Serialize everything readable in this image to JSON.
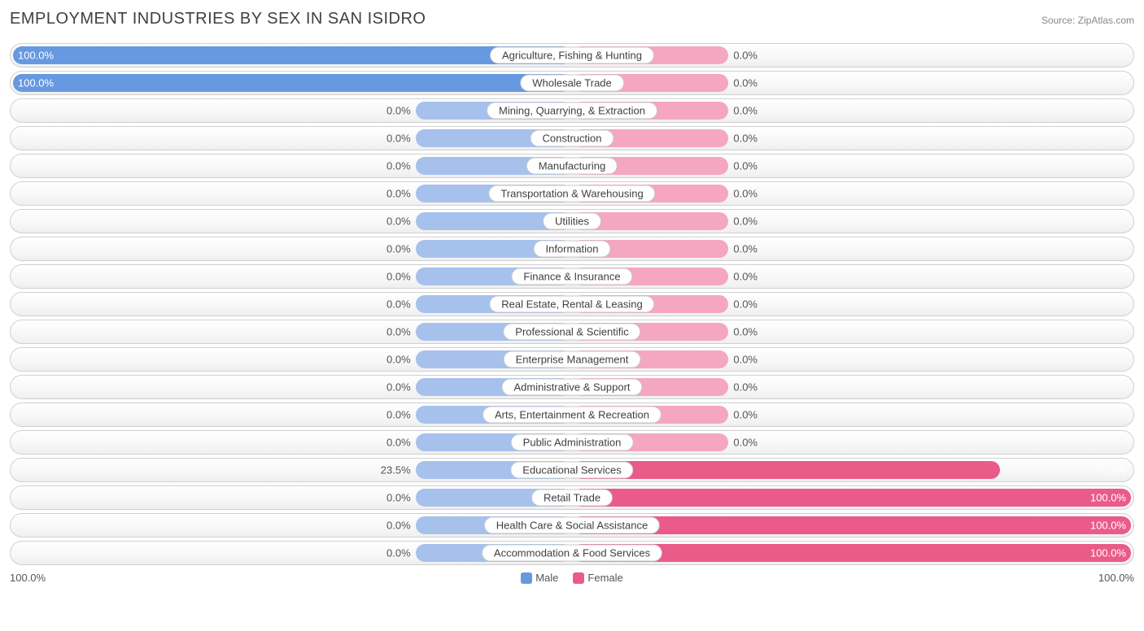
{
  "title": "EMPLOYMENT INDUSTRIES BY SEX IN SAN ISIDRO",
  "source": "Source: ZipAtlas.com",
  "axis_left": "100.0%",
  "axis_right": "100.0%",
  "legend": {
    "male": "Male",
    "female": "Female"
  },
  "colors": {
    "male_full": "#6699e0",
    "male_dim": "#a6c1ec",
    "female_full": "#ea5b89",
    "female_dim": "#f5a6c0",
    "row_border": "#d0d0d0",
    "text": "#404040"
  },
  "min_stub_pct": 28,
  "industries": [
    {
      "label": "Agriculture, Fishing & Hunting",
      "male": 100.0,
      "female": 0.0
    },
    {
      "label": "Wholesale Trade",
      "male": 100.0,
      "female": 0.0
    },
    {
      "label": "Mining, Quarrying, & Extraction",
      "male": 0.0,
      "female": 0.0
    },
    {
      "label": "Construction",
      "male": 0.0,
      "female": 0.0
    },
    {
      "label": "Manufacturing",
      "male": 0.0,
      "female": 0.0
    },
    {
      "label": "Transportation & Warehousing",
      "male": 0.0,
      "female": 0.0
    },
    {
      "label": "Utilities",
      "male": 0.0,
      "female": 0.0
    },
    {
      "label": "Information",
      "male": 0.0,
      "female": 0.0
    },
    {
      "label": "Finance & Insurance",
      "male": 0.0,
      "female": 0.0
    },
    {
      "label": "Real Estate, Rental & Leasing",
      "male": 0.0,
      "female": 0.0
    },
    {
      "label": "Professional & Scientific",
      "male": 0.0,
      "female": 0.0
    },
    {
      "label": "Enterprise Management",
      "male": 0.0,
      "female": 0.0
    },
    {
      "label": "Administrative & Support",
      "male": 0.0,
      "female": 0.0
    },
    {
      "label": "Arts, Entertainment & Recreation",
      "male": 0.0,
      "female": 0.0
    },
    {
      "label": "Public Administration",
      "male": 0.0,
      "female": 0.0
    },
    {
      "label": "Educational Services",
      "male": 23.5,
      "female": 76.5
    },
    {
      "label": "Retail Trade",
      "male": 0.0,
      "female": 100.0
    },
    {
      "label": "Health Care & Social Assistance",
      "male": 0.0,
      "female": 100.0
    },
    {
      "label": "Accommodation & Food Services",
      "male": 0.0,
      "female": 100.0
    }
  ]
}
